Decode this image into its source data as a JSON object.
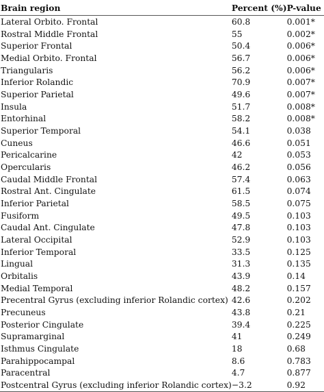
{
  "headers": {
    "region": "Brain region",
    "percent": "Percent (%)",
    "pvalue": "P-value"
  },
  "rows": [
    {
      "region": "Lateral Orbito. Frontal",
      "percent": "60.8",
      "pvalue": "0.001*"
    },
    {
      "region": "Rostral Middle Frontal",
      "percent": "55",
      "pvalue": "0.002*"
    },
    {
      "region": "Superior Frontal",
      "percent": "50.4",
      "pvalue": "0.006*"
    },
    {
      "region": "Medial Orbito. Frontal",
      "percent": "56.7",
      "pvalue": "0.006*"
    },
    {
      "region": "Triangularis",
      "percent": "56.2",
      "pvalue": "0.006*"
    },
    {
      "region": "Inferior Rolandic",
      "percent": "70.9",
      "pvalue": "0.007*"
    },
    {
      "region": "Superior Parietal",
      "percent": "49.6",
      "pvalue": "0.007*"
    },
    {
      "region": "Insula",
      "percent": "51.7",
      "pvalue": "0.008*"
    },
    {
      "region": "Entorhinal",
      "percent": "58.2",
      "pvalue": "0.008*"
    },
    {
      "region": "Superior Temporal",
      "percent": "54.1",
      "pvalue": "0.038"
    },
    {
      "region": "Cuneus",
      "percent": "46.6",
      "pvalue": "0.051"
    },
    {
      "region": "Pericalcarine",
      "percent": "42",
      "pvalue": "0.053"
    },
    {
      "region": "Opercularis",
      "percent": "46.2",
      "pvalue": "0.056"
    },
    {
      "region": "Caudal Middle Frontal",
      "percent": "57.4",
      "pvalue": "0.063"
    },
    {
      "region": "Rostral Ant. Cingulate",
      "percent": "61.5",
      "pvalue": "0.074"
    },
    {
      "region": "Inferior Parietal",
      "percent": "58.5",
      "pvalue": "0.075"
    },
    {
      "region": "Fusiform",
      "percent": "49.5",
      "pvalue": "0.103"
    },
    {
      "region": "Caudal Ant. Cingulate",
      "percent": "47.8",
      "pvalue": "0.103"
    },
    {
      "region": "Lateral Occipital",
      "percent": "52.9",
      "pvalue": "0.103"
    },
    {
      "region": "Inferior Temporal",
      "percent": "33.5",
      "pvalue": "0.125"
    },
    {
      "region": "Lingual",
      "percent": "31.3",
      "pvalue": "0.135"
    },
    {
      "region": "Orbitalis",
      "percent": "43.9",
      "pvalue": "0.14"
    },
    {
      "region": "Medial Temporal",
      "percent": "48.2",
      "pvalue": "0.157"
    },
    {
      "region": "Precentral Gyrus (excluding inferior Rolandic cortex)",
      "percent": "42.6",
      "pvalue": "0.202"
    },
    {
      "region": "Precuneus",
      "percent": "43.8",
      "pvalue": "0.21"
    },
    {
      "region": "Posterior Cingulate",
      "percent": "39.4",
      "pvalue": "0.225"
    },
    {
      "region": "Supramarginal",
      "percent": "41",
      "pvalue": "0.249"
    },
    {
      "region": "Isthmus Cingulate",
      "percent": "18",
      "pvalue": "0.68"
    },
    {
      "region": "Parahippocampal",
      "percent": "8.6",
      "pvalue": "0.783"
    },
    {
      "region": "Paracentral",
      "percent": "4.7",
      "pvalue": "0.877"
    },
    {
      "region": "Postcentral Gyrus (excluding inferior Rolandic cortex)",
      "percent": "−3.2",
      "pvalue": "0.92"
    }
  ]
}
